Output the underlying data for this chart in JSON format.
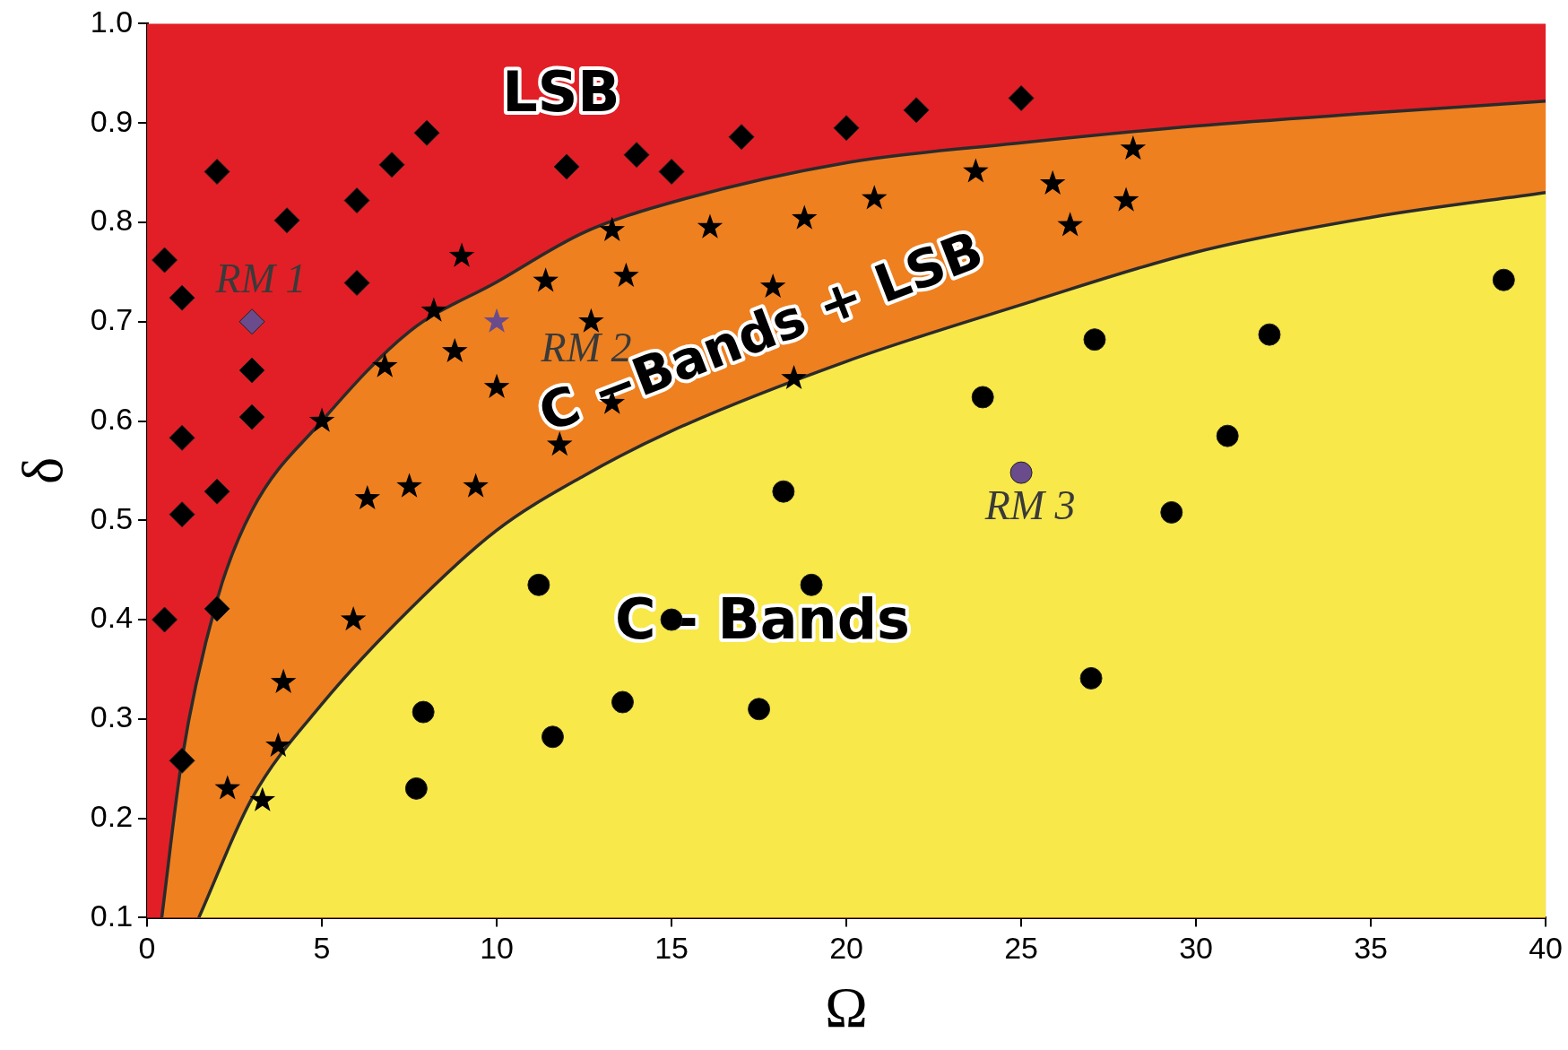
{
  "chart_data": {
    "type": "scatter",
    "xlabel": "Ω",
    "ylabel": "δ",
    "xlim": [
      0,
      40
    ],
    "ylim": [
      0.1,
      1.0
    ],
    "xticks": [
      0,
      5,
      10,
      15,
      20,
      25,
      30,
      35,
      40
    ],
    "yticks": [
      {
        "value": 0.1,
        "label": "0.1"
      },
      {
        "value": 0.2,
        "label": "0.2"
      },
      {
        "value": 0.3,
        "label": "0.3"
      },
      {
        "value": 0.4,
        "label": "0.4"
      },
      {
        "value": 0.5,
        "label": "0.5"
      },
      {
        "value": 0.6,
        "label": "0.6"
      },
      {
        "value": 0.7,
        "label": "0.7"
      },
      {
        "value": 0.8,
        "label": "0.8"
      },
      {
        "value": 0.9,
        "label": "0.9"
      },
      {
        "value": 1.0,
        "label": "1.0"
      }
    ],
    "grid": false,
    "legend": false,
    "bands": [
      {
        "axis": "y",
        "from": 0.1,
        "to": 1.0,
        "color": "#e21f26"
      }
    ],
    "series": [
      {
        "type": "area",
        "color": "#ee8020",
        "x": [
          0.42,
          1,
          2,
          3,
          5,
          7.5,
          10,
          12.5,
          15,
          20,
          25,
          30,
          35,
          40
        ],
        "values": [
          0.1,
          0.26,
          0.42,
          0.51,
          0.6,
          0.69,
          0.74,
          0.79,
          0.82,
          0.86,
          0.88,
          0.897,
          0.91,
          0.922
        ]
      },
      {
        "type": "area",
        "color": "#f8e84a",
        "x": [
          1.48,
          3,
          5,
          7.5,
          10,
          12.5,
          15,
          20,
          25,
          30,
          35,
          40
        ],
        "values": [
          0.1,
          0.22,
          0.315,
          0.41,
          0.49,
          0.545,
          0.59,
          0.66,
          0.717,
          0.77,
          0.805,
          0.83
        ]
      },
      {
        "type": "scatter",
        "marker": "diamond",
        "color": "#000000",
        "x": [
          0.5,
          0.5,
          1,
          1,
          1,
          1,
          2,
          2,
          2,
          3,
          3,
          4,
          6,
          6,
          7,
          8,
          12,
          14,
          15,
          17,
          20,
          22,
          25
        ],
        "values": [
          0.4,
          0.762,
          0.724,
          0.583,
          0.506,
          0.258,
          0.851,
          0.529,
          0.411,
          0.651,
          0.604,
          0.802,
          0.822,
          0.739,
          0.858,
          0.89,
          0.856,
          0.868,
          0.851,
          0.886,
          0.895,
          0.913,
          0.925
        ]
      },
      {
        "type": "scatter",
        "marker": "star",
        "color": "#000000",
        "x": [
          2.3,
          3.3,
          3.75,
          3.9,
          5,
          5.9,
          6.3,
          6.8,
          7.5,
          8.2,
          8.8,
          9,
          9.4,
          10,
          11.4,
          11.8,
          12.7,
          13.3,
          13.3,
          13.7,
          16.1,
          17.9,
          18.5,
          18.8,
          20.8,
          23.7,
          25.9,
          26.4,
          28,
          28.2
        ],
        "values": [
          0.23,
          0.218,
          0.273,
          0.337,
          0.6,
          0.4,
          0.522,
          0.655,
          0.534,
          0.711,
          0.67,
          0.766,
          0.534,
          0.634,
          0.741,
          0.576,
          0.7,
          0.792,
          0.618,
          0.746,
          0.795,
          0.735,
          0.643,
          0.804,
          0.824,
          0.851,
          0.839,
          0.797,
          0.822,
          0.874
        ]
      },
      {
        "type": "scatter",
        "marker": "circle",
        "color": "#000000",
        "x": [
          7.7,
          7.9,
          11.2,
          11.6,
          13.6,
          15,
          17.5,
          18.2,
          19,
          23.9,
          27,
          27.1,
          29.3,
          30.9,
          32.1,
          38.8
        ],
        "values": [
          0.23,
          0.307,
          0.435,
          0.282,
          0.317,
          0.4,
          0.31,
          0.529,
          0.435,
          0.624,
          0.341,
          0.682,
          0.508,
          0.585,
          0.687,
          0.742
        ]
      },
      {
        "type": "scatter",
        "marker": "diamond",
        "color": "#6a4c8c",
        "x": [
          3
        ],
        "values": [
          0.7
        ]
      },
      {
        "type": "scatter",
        "marker": "star",
        "color": "#6a4c8c",
        "x": [
          10
        ],
        "values": [
          0.7
        ]
      },
      {
        "type": "scatter",
        "marker": "circle",
        "color": "#6a4c8c",
        "x": [
          25
        ],
        "values": [
          0.548
        ]
      }
    ],
    "annotations": [
      "LSB",
      "C −Bands + LSB",
      "C - Bands",
      {
        "text": "RM 1",
        "x": 3,
        "y": 0.7
      },
      {
        "text": "RM 2",
        "x": 10,
        "y": 0.7
      },
      {
        "text": "RM 3",
        "x": 25,
        "y": 0.548
      }
    ]
  }
}
